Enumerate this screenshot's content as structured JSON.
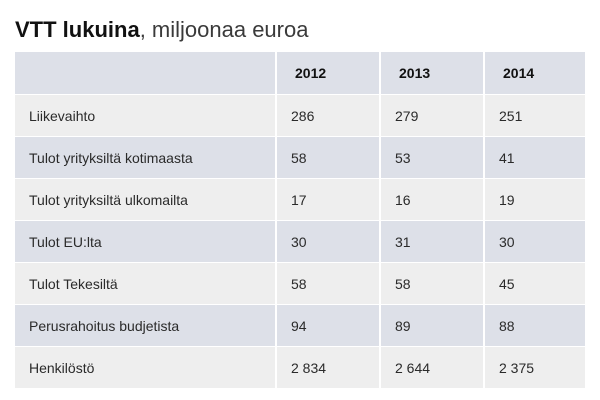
{
  "title": {
    "bold": "VTT lukuina",
    "light": ", miljoonaa euroa"
  },
  "table": {
    "headers": [
      "",
      "2012",
      "2013",
      "2014"
    ],
    "rows": [
      {
        "label": "Liikevaihto",
        "values": [
          "286",
          "279",
          "251"
        ]
      },
      {
        "label": "Tulot yrityksiltä kotimaasta",
        "values": [
          "58",
          "53",
          "41"
        ]
      },
      {
        "label": "Tulot yrityksiltä ulkomailta",
        "values": [
          "17",
          "16",
          "19"
        ]
      },
      {
        "label": "Tulot EU:lta",
        "values": [
          "30",
          "31",
          "30"
        ]
      },
      {
        "label": "Tulot Tekesiltä",
        "values": [
          "58",
          "58",
          "45"
        ]
      },
      {
        "label": "Perusrahoitus budjetista",
        "values": [
          "94",
          "89",
          "88"
        ]
      },
      {
        "label": "Henkilöstö",
        "values": [
          "2 834",
          "2 644",
          "2 375"
        ]
      }
    ]
  }
}
